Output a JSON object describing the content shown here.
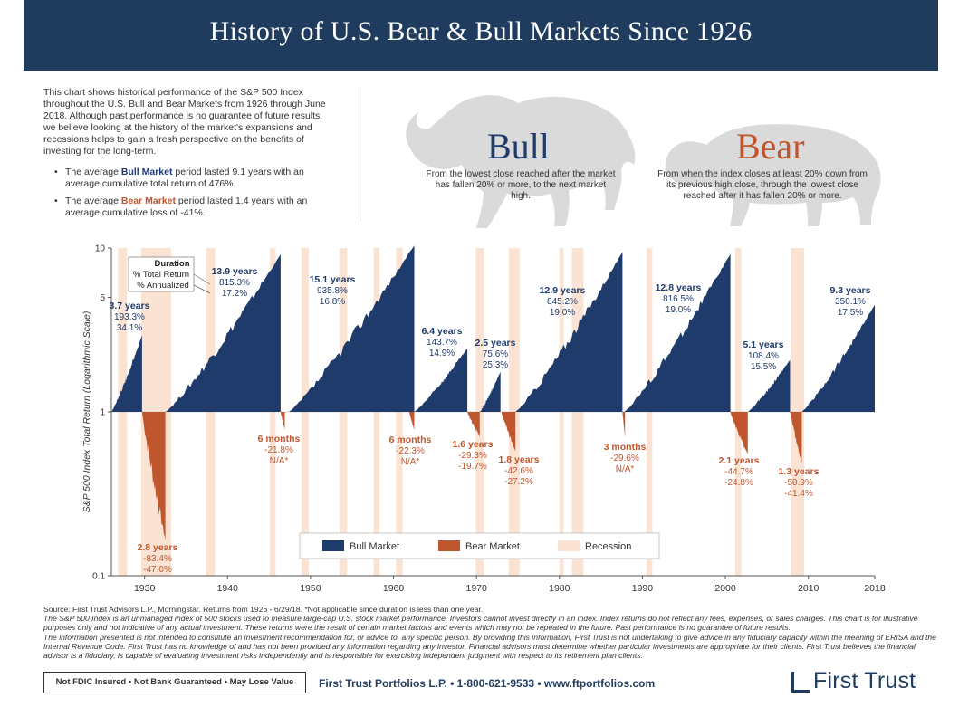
{
  "header": {
    "title": "History of U.S. Bear & Bull Markets Since 1926"
  },
  "intro": {
    "paragraph": "This chart shows historical performance of the S&P 500 Index throughout the U.S. Bull and Bear Markets from 1926 through June 2018. Although past performance is no guarantee of future results, we believe looking at the history of the market's expansions and recessions helps to gain a fresh perspective on the benefits of investing for the long-term.",
    "bullet_bull": {
      "pre": "The average ",
      "highlight": "Bull Market",
      "post": " period lasted 9.1 years with an average cumulative total return of 476%."
    },
    "bullet_bear": {
      "pre": "The average ",
      "highlight": "Bear Market",
      "post": " period lasted 1.4 years with an average cumulative loss of -41%."
    }
  },
  "bull_panel": {
    "title": "Bull",
    "definition": "From the lowest close reached after the market has fallen 20% or more, to the next market high."
  },
  "bear_panel": {
    "title": "Bear",
    "definition": "From when the index closes at least 20% down from its previous high close, through the lowest close reached after it has fallen 20% or more."
  },
  "colors": {
    "bull": "#1f3b6b",
    "bear": "#c0562e",
    "recession": "#fbe3d3",
    "header": "#1f3b5e"
  },
  "chart_data": {
    "type": "area",
    "ylabel": "S&P 500 Index Total Return (Logarithmic Scale)",
    "yscale": "log",
    "ylim": [
      0.1,
      10
    ],
    "yticks": [
      10,
      5,
      1,
      0.1
    ],
    "xlim": [
      1926,
      2018
    ],
    "xticks": [
      1930,
      1940,
      1950,
      1960,
      1970,
      1980,
      1990,
      2000,
      2010,
      2018
    ],
    "legend": {
      "placement": "bottom-center",
      "items": [
        "Bull Market",
        "Bear Market",
        "Recession"
      ]
    },
    "duration_key": {
      "title": "Duration",
      "line1": "% Total Return",
      "line2": "% Annualized"
    },
    "recessions": [
      [
        1926.8,
        1927.9
      ],
      [
        1929.6,
        1933.2
      ],
      [
        1937.4,
        1938.5
      ],
      [
        1945.1,
        1945.8
      ],
      [
        1948.9,
        1949.8
      ],
      [
        1953.5,
        1954.4
      ],
      [
        1957.6,
        1958.3
      ],
      [
        1960.3,
        1961.1
      ],
      [
        1969.9,
        1970.9
      ],
      [
        1973.9,
        1975.2
      ],
      [
        1980.0,
        1980.5
      ],
      [
        1981.5,
        1982.9
      ],
      [
        1990.5,
        1991.2
      ],
      [
        2001.2,
        2001.9
      ],
      [
        2007.9,
        2009.5
      ]
    ],
    "bull_markets": [
      {
        "start": 1926.0,
        "end": 1929.7,
        "peak": 2.93,
        "label": [
          "3.7 years",
          "193.3%",
          "34.1%"
        ]
      },
      {
        "start": 1932.5,
        "end": 1946.4,
        "peak": 9.15,
        "label": [
          "13.9 years",
          "815.3%",
          "17.2%"
        ]
      },
      {
        "start": 1947.4,
        "end": 1962.5,
        "peak": 10.36,
        "label": [
          "15.1 years",
          "935.8%",
          "16.8%"
        ]
      },
      {
        "start": 1962.5,
        "end": 1968.9,
        "peak": 2.44,
        "label": [
          "6.4 years",
          "143.7%",
          "14.9%"
        ]
      },
      {
        "start": 1970.4,
        "end": 1972.9,
        "peak": 1.76,
        "label": [
          "2.5 years",
          "75.6%",
          "25.3%"
        ]
      },
      {
        "start": 1974.7,
        "end": 1987.6,
        "peak": 9.45,
        "label": [
          "12.9 years",
          "845.2%",
          "19.0%"
        ]
      },
      {
        "start": 1987.8,
        "end": 2000.6,
        "peak": 9.17,
        "label": [
          "12.8 years",
          "816.5%",
          "19.0%"
        ]
      },
      {
        "start": 2002.7,
        "end": 2007.8,
        "peak": 2.08,
        "label": [
          "5.1 years",
          "108.4%",
          "15.5%"
        ]
      },
      {
        "start": 2009.2,
        "end": 2018.5,
        "peak": 4.5,
        "label": [
          "9.3 years",
          "350.1%",
          "17.5%"
        ]
      }
    ],
    "bear_markets": [
      {
        "start": 1929.7,
        "end": 1932.5,
        "trough": 0.166,
        "label": [
          "2.8 years",
          "-83.4%",
          "-47.0%"
        ]
      },
      {
        "start": 1946.4,
        "end": 1946.9,
        "trough": 0.782,
        "label": [
          "6 months",
          "-21.8%",
          "N/A*"
        ]
      },
      {
        "start": 1961.9,
        "end": 1962.5,
        "trough": 0.777,
        "label": [
          "6 months",
          "-22.3%",
          "N/A*"
        ]
      },
      {
        "start": 1968.9,
        "end": 1970.4,
        "trough": 0.707,
        "label": [
          "1.6 years",
          "-29.3%",
          "-19.7%"
        ]
      },
      {
        "start": 1973.0,
        "end": 1974.7,
        "trough": 0.574,
        "label": [
          "1.8 years",
          "-42.6%",
          "-27.2%"
        ]
      },
      {
        "start": 1987.6,
        "end": 1987.9,
        "trough": 0.704,
        "label": [
          "3 months",
          "-29.6%",
          "N/A*"
        ]
      },
      {
        "start": 2000.6,
        "end": 2002.7,
        "trough": 0.553,
        "label": [
          "2.1 years",
          "-44.7%",
          "-24.8%"
        ]
      },
      {
        "start": 2007.8,
        "end": 2009.2,
        "trough": 0.491,
        "label": [
          "1.3 years",
          "-50.9%",
          "-41.4%"
        ]
      }
    ]
  },
  "footer": {
    "source": "Source: First Trust Advisors L.P., Morningstar. Returns from 1926 - 6/29/18. *Not applicable since duration is less than one year.",
    "note1": "The S&P 500 Index is an unmanaged index of 500 stocks used to measure large-cap U.S. stock market performance. Investors cannot invest directly in an index. Index returns do not reflect any fees, expenses, or sales charges. This chart is for illustrative purposes only and not indicative of any actual investment. These returns were the result of certain market factors and events which may not be repeated in the future. Past performance is no guarantee of future results.",
    "note2": "The information presented is not intended to constitute an investment recommendation for, or advice to, any specific person. By providing this information, First Trust is not undertaking to give advice in any fiduciary capacity within the meaning of ERISA and the Internal Revenue Code. First Trust has no knowledge of and has not been provided any information regarding any investor. Financial advisors must determine whether particular investments are appropriate for their clients. First Trust believes the financial advisor is a fiduciary, is capable of evaluating investment risks independently and is responsible for exercising independent judgment with respect to its retirement plan clients.",
    "disclaimer": "Not FDIC Insured • Not Bank Guaranteed • May Lose Value",
    "contact": "First Trust Portfolios L.P. • 1-800-621-9533 • www.ftportfolios.com",
    "logo": "First Trust"
  }
}
